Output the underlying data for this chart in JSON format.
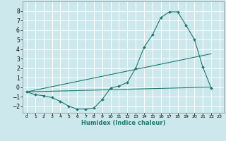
{
  "xlabel": "Humidex (Indice chaleur)",
  "bg_color": "#cce8ec",
  "grid_color": "#ffffff",
  "line_color": "#1a7a6e",
  "xlim": [
    -0.5,
    23.5
  ],
  "ylim": [
    -2.7,
    9.0
  ],
  "xticks": [
    0,
    1,
    2,
    3,
    4,
    5,
    6,
    7,
    8,
    9,
    10,
    11,
    12,
    13,
    14,
    15,
    16,
    17,
    18,
    19,
    20,
    21,
    22,
    23
  ],
  "yticks": [
    -2,
    -1,
    0,
    1,
    2,
    3,
    4,
    5,
    6,
    7,
    8
  ],
  "curve1_x": [
    0,
    1,
    2,
    3,
    4,
    5,
    6,
    7,
    8,
    9,
    10,
    11,
    12,
    13,
    14,
    15,
    16,
    17,
    18,
    19,
    20,
    21,
    22
  ],
  "curve1_y": [
    -0.5,
    -0.8,
    -0.9,
    -1.1,
    -1.5,
    -2.0,
    -2.3,
    -2.3,
    -2.2,
    -1.3,
    -0.1,
    0.1,
    0.5,
    2.0,
    4.2,
    5.5,
    7.3,
    7.9,
    7.9,
    6.5,
    5.0,
    2.1,
    -0.1
  ],
  "curve2_x": [
    0,
    22
  ],
  "curve2_y": [
    -0.5,
    3.5
  ],
  "curve3_x": [
    0,
    22
  ],
  "curve3_y": [
    -0.5,
    0.0
  ]
}
